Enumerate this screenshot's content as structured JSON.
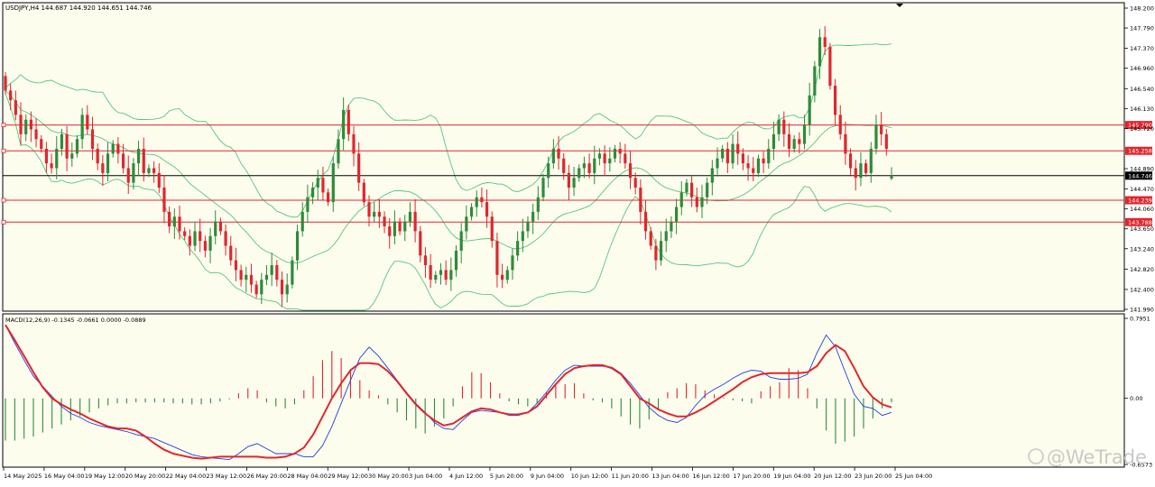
{
  "colors": {
    "background": "#fdfdee",
    "frame": "#000000",
    "bull_candle": "#2e8b3a",
    "bear_candle": "#e0262d",
    "bollinger": "#54c77b",
    "level_line": "#e0262d",
    "current_price_line": "#000000",
    "macd_line": "#1f3fe0",
    "signal_line": "#e0262d",
    "hist_positive": "#e0262d",
    "hist_negative": "#2e8b3a",
    "watermark": "#c9c9c9"
  },
  "header": {
    "symbol_line": "USDJPY,H4  144.687 144.920 144.651 144.746"
  },
  "macd_label": "MACD(12,26,9) -0.1345 -0.0661 0.0000 -0.0889",
  "watermark": "@WeTrade",
  "price_axis": {
    "ticks": [
      "148.200",
      "147.790",
      "147.370",
      "146.960",
      "146.540",
      "146.130",
      "145.720",
      "144.890",
      "144.470",
      "144.060",
      "143.650",
      "143.240",
      "142.820",
      "142.400",
      "141.990"
    ]
  },
  "macd_axis": {
    "ticks": [
      "0.7951",
      "0.00",
      "-0.6573"
    ]
  },
  "time_axis": {
    "labels": [
      "14 May 2025",
      "16 May 04:00",
      "19 May 12:00",
      "20 May 20:00",
      "22 May 04:00",
      "23 May 12:00",
      "26 May 20:00",
      "28 May 04:00",
      "29 May 12:00",
      "30 May 20:00",
      "3 Jun 04:00",
      "4 Jun 12:00",
      "5 Jun 20:00",
      "9 Jun 04:00",
      "10 Jun 12:00",
      "11 Jun 20:00",
      "13 Jun 04:00",
      "16 Jun 12:00",
      "17 Jun 20:00",
      "19 Jun 04:00",
      "20 Jun 12:00",
      "23 Jun 20:00",
      "25 Jun 04:00"
    ]
  },
  "levels": [
    {
      "label": "145.790",
      "value": 145.79
    },
    {
      "label": "145.258",
      "value": 145.258
    },
    {
      "label": "144.239",
      "value": 144.239
    },
    {
      "label": "143.788",
      "value": 143.788
    }
  ],
  "current_price": {
    "label": "144.746",
    "value": 144.746
  },
  "chart_data": {
    "type": "candlestick",
    "title": "USDJPY,H4",
    "ohlc_header": {
      "open": 144.687,
      "high": 144.92,
      "low": 144.651,
      "close": 144.746
    },
    "price_range": [
      141.99,
      148.2
    ],
    "grid": false,
    "closes": [
      146.5,
      146.3,
      146.0,
      145.6,
      145.9,
      145.7,
      145.5,
      145.3,
      145.0,
      144.9,
      145.3,
      145.6,
      145.1,
      145.2,
      145.5,
      146.0,
      145.7,
      145.3,
      145.0,
      144.8,
      145.2,
      145.4,
      145.2,
      144.9,
      144.6,
      145.0,
      145.3,
      144.8,
      144.9,
      144.8,
      144.5,
      144.0,
      143.7,
      143.9,
      143.6,
      143.5,
      143.3,
      143.6,
      143.4,
      143.2,
      143.5,
      143.8,
      143.6,
      143.3,
      143.0,
      142.8,
      142.6,
      142.7,
      142.5,
      142.3,
      142.6,
      142.7,
      142.9,
      142.6,
      142.3,
      142.5,
      143.0,
      143.6,
      144.0,
      144.3,
      144.5,
      144.7,
      144.4,
      144.2,
      145.0,
      145.5,
      146.1,
      145.6,
      145.2,
      144.6,
      144.2,
      143.9,
      144.0,
      143.9,
      143.7,
      143.5,
      143.8,
      143.6,
      143.8,
      144.0,
      143.6,
      143.1,
      142.9,
      142.6,
      142.7,
      142.8,
      142.6,
      142.8,
      143.2,
      143.6,
      143.9,
      144.1,
      144.3,
      144.2,
      143.9,
      143.4,
      142.7,
      142.6,
      142.8,
      143.1,
      143.4,
      143.6,
      143.8,
      144.0,
      144.3,
      144.7,
      145.0,
      145.3,
      145.1,
      144.8,
      144.5,
      144.7,
      144.9,
      145.0,
      144.8,
      145.1,
      145.2,
      145.0,
      145.1,
      145.3,
      145.2,
      145.0,
      144.7,
      144.5,
      144.0,
      143.6,
      143.3,
      143.0,
      143.4,
      143.6,
      143.8,
      144.1,
      144.4,
      144.6,
      144.3,
      144.1,
      144.3,
      144.6,
      144.9,
      145.1,
      145.3,
      145.0,
      145.4,
      145.2,
      145.0,
      144.9,
      144.8,
      145.1,
      145.0,
      145.3,
      145.6,
      145.9,
      145.6,
      145.3,
      145.5,
      145.4,
      145.8,
      146.4,
      147.0,
      147.6,
      147.4,
      146.6,
      146.0,
      145.6,
      145.2,
      144.9,
      144.7,
      145.0,
      144.8,
      145.3,
      145.8,
      145.6,
      145.3,
      144.746
    ],
    "series": [
      {
        "name": "MACD line",
        "values": [
          0.73,
          0.55,
          0.38,
          0.22,
          0.12,
          0.02,
          -0.08,
          -0.15,
          -0.19,
          -0.24,
          -0.27,
          -0.29,
          -0.31,
          -0.33,
          -0.36,
          -0.38,
          -0.4,
          -0.44,
          -0.48,
          -0.52,
          -0.56,
          -0.58,
          -0.59,
          -0.6,
          -0.61,
          -0.55,
          -0.48,
          -0.45,
          -0.5,
          -0.55,
          -0.55,
          -0.55,
          -0.58,
          -0.58,
          -0.47,
          -0.28,
          -0.05,
          0.18,
          0.4,
          0.51,
          0.42,
          0.3,
          0.18,
          0.06,
          -0.05,
          -0.14,
          -0.24,
          -0.3,
          -0.31,
          -0.22,
          -0.14,
          -0.12,
          -0.13,
          -0.14,
          -0.17,
          -0.17,
          -0.14,
          -0.05,
          0.06,
          0.18,
          0.28,
          0.33,
          0.32,
          0.32,
          0.32,
          0.31,
          0.25,
          0.15,
          0.03,
          -0.09,
          -0.17,
          -0.22,
          -0.24,
          -0.19,
          -0.07,
          0.03,
          0.09,
          0.14,
          0.2,
          0.25,
          0.28,
          0.27,
          0.21,
          0.19,
          0.19,
          0.2,
          0.24,
          0.45,
          0.63,
          0.51,
          0.27,
          0.04,
          -0.08,
          -0.1,
          -0.17,
          -0.14
        ]
      },
      {
        "name": "Signal line",
        "values": [
          0.73,
          0.58,
          0.42,
          0.26,
          0.11,
          0.0,
          -0.06,
          -0.11,
          -0.15,
          -0.2,
          -0.24,
          -0.28,
          -0.3,
          -0.3,
          -0.32,
          -0.38,
          -0.45,
          -0.51,
          -0.55,
          -0.57,
          -0.59,
          -0.6,
          -0.59,
          -0.58,
          -0.58,
          -0.58,
          -0.58,
          -0.58,
          -0.59,
          -0.59,
          -0.58,
          -0.55,
          -0.49,
          -0.36,
          -0.18,
          0.0,
          0.15,
          0.28,
          0.35,
          0.35,
          0.34,
          0.27,
          0.17,
          0.05,
          -0.06,
          -0.15,
          -0.22,
          -0.27,
          -0.25,
          -0.19,
          -0.13,
          -0.1,
          -0.11,
          -0.14,
          -0.16,
          -0.16,
          -0.14,
          -0.08,
          0.03,
          0.14,
          0.24,
          0.3,
          0.32,
          0.33,
          0.33,
          0.3,
          0.24,
          0.12,
          0.0,
          -0.05,
          -0.11,
          -0.15,
          -0.18,
          -0.18,
          -0.14,
          -0.09,
          -0.03,
          0.03,
          0.09,
          0.16,
          0.21,
          0.24,
          0.25,
          0.25,
          0.25,
          0.25,
          0.26,
          0.32,
          0.45,
          0.53,
          0.47,
          0.3,
          0.12,
          0.01,
          -0.06,
          -0.09
        ]
      },
      {
        "name": "Histogram",
        "values": [
          -0.42,
          -0.42,
          -0.4,
          -0.38,
          -0.34,
          -0.3,
          -0.26,
          -0.22,
          -0.18,
          -0.14,
          -0.1,
          -0.07,
          -0.05,
          -0.05,
          -0.04,
          -0.04,
          -0.04,
          -0.04,
          -0.05,
          -0.05,
          -0.06,
          -0.06,
          -0.05,
          -0.03,
          -0.01,
          0.05,
          0.1,
          0.08,
          -0.04,
          -0.08,
          -0.1,
          -0.06,
          0.08,
          0.22,
          0.38,
          0.47,
          0.4,
          0.29,
          0.18,
          0.08,
          0.03,
          -0.06,
          -0.14,
          -0.22,
          -0.3,
          -0.35,
          -0.28,
          -0.2,
          -0.08,
          0.12,
          0.26,
          0.25,
          0.16,
          0.05,
          -0.03,
          -0.06,
          -0.08,
          -0.05,
          0.06,
          0.13,
          0.14,
          0.15,
          0.05,
          -0.02,
          -0.04,
          -0.1,
          -0.18,
          -0.26,
          -0.3,
          -0.21,
          -0.12,
          0.06,
          0.1,
          0.15,
          0.14,
          0.08,
          0.04,
          0.01,
          -0.02,
          -0.03,
          -0.05,
          0.07,
          0.12,
          0.16,
          0.3,
          0.28,
          0.1,
          -0.1,
          -0.32,
          -0.45,
          -0.43,
          -0.38,
          -0.3,
          -0.2,
          -0.1,
          -0.04
        ]
      }
    ]
  }
}
